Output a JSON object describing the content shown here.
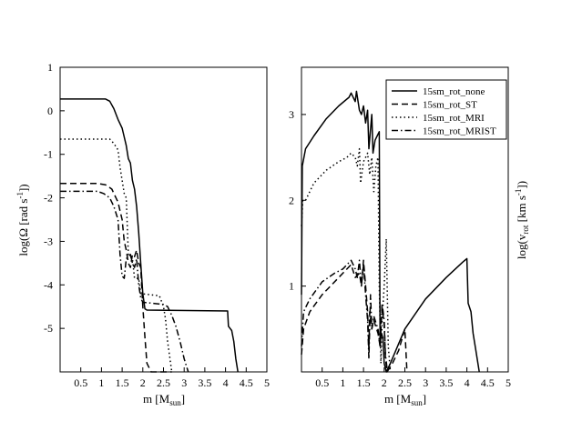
{
  "chart_data": [
    {
      "type": "line",
      "xlabel": "m [M",
      "xlabel_sub": "sun",
      "xlabel_close": "]",
      "ylabel": "log(Ω [rad s",
      "ylabel_sup": "-1",
      "ylabel_close": "])",
      "xlim": [
        0,
        5
      ],
      "ylim": [
        -6,
        1
      ],
      "xticks": [
        "0.5",
        "1",
        "1.5",
        "2",
        "2.5",
        "3",
        "3.5",
        "4",
        "4.5",
        "5"
      ],
      "xtick_values": [
        0.5,
        1,
        1.5,
        2,
        2.5,
        3,
        3.5,
        4,
        4.5,
        5
      ],
      "yticks": [
        "1",
        "0",
        "-1",
        "-2",
        "-3",
        "-4",
        "-5"
      ],
      "ytick_values": [
        1,
        0,
        -1,
        -2,
        -3,
        -4,
        -5
      ],
      "series": [
        {
          "dash": "solid",
          "points": [
            [
              0,
              0.27
            ],
            [
              1.1,
              0.27
            ],
            [
              1.2,
              0.22
            ],
            [
              1.3,
              0.05
            ],
            [
              1.4,
              -0.2
            ],
            [
              1.5,
              -0.4
            ],
            [
              1.6,
              -0.8
            ],
            [
              1.65,
              -1.1
            ],
            [
              1.7,
              -1.2
            ],
            [
              1.75,
              -1.6
            ],
            [
              1.8,
              -1.8
            ],
            [
              1.85,
              -2.2
            ],
            [
              1.9,
              -2.8
            ],
            [
              1.95,
              -3.5
            ],
            [
              2.0,
              -4.2
            ],
            [
              2.05,
              -4.55
            ],
            [
              2.1,
              -4.58
            ],
            [
              4.05,
              -4.6
            ],
            [
              4.07,
              -4.95
            ],
            [
              4.15,
              -5.05
            ],
            [
              4.2,
              -5.3
            ],
            [
              4.25,
              -5.7
            ],
            [
              4.3,
              -6.0
            ]
          ]
        },
        {
          "dash": "dotted",
          "points": [
            [
              0,
              -0.65
            ],
            [
              1.2,
              -0.65
            ],
            [
              1.3,
              -0.75
            ],
            [
              1.4,
              -0.9
            ],
            [
              1.45,
              -1.3
            ],
            [
              1.5,
              -1.6
            ],
            [
              1.55,
              -1.9
            ],
            [
              1.6,
              -2.0
            ],
            [
              1.65,
              -3.3
            ],
            [
              1.75,
              -3.4
            ],
            [
              1.8,
              -3.85
            ],
            [
              1.9,
              -3.85
            ],
            [
              1.95,
              -4.2
            ],
            [
              2.4,
              -4.25
            ],
            [
              2.5,
              -4.5
            ],
            [
              2.55,
              -4.8
            ],
            [
              2.6,
              -5.3
            ],
            [
              2.7,
              -6.0
            ]
          ]
        },
        {
          "dash": "dashed",
          "points": [
            [
              0,
              -1.67
            ],
            [
              0.9,
              -1.67
            ],
            [
              1.1,
              -1.7
            ],
            [
              1.25,
              -1.8
            ],
            [
              1.35,
              -2.0
            ],
            [
              1.4,
              -2.1
            ],
            [
              1.45,
              -2.3
            ],
            [
              1.5,
              -2.5
            ],
            [
              1.55,
              -3.0
            ],
            [
              1.6,
              -3.2
            ],
            [
              1.65,
              -3.5
            ],
            [
              1.7,
              -3.6
            ],
            [
              1.75,
              -3.3
            ],
            [
              1.8,
              -3.35
            ],
            [
              1.85,
              -3.2
            ],
            [
              1.9,
              -3.5
            ],
            [
              1.95,
              -3.6
            ],
            [
              2.0,
              -4.5
            ],
            [
              2.05,
              -5.2
            ],
            [
              2.1,
              -5.8
            ],
            [
              2.2,
              -6.0
            ],
            [
              2.7,
              -6.0
            ]
          ]
        },
        {
          "dash": "dashdot",
          "points": [
            [
              0,
              -1.85
            ],
            [
              0.9,
              -1.85
            ],
            [
              1.05,
              -1.9
            ],
            [
              1.2,
              -2.0
            ],
            [
              1.3,
              -2.2
            ],
            [
              1.4,
              -2.5
            ],
            [
              1.45,
              -3.3
            ],
            [
              1.5,
              -3.8
            ],
            [
              1.55,
              -3.85
            ],
            [
              1.6,
              -3.4
            ],
            [
              1.7,
              -3.3
            ],
            [
              1.75,
              -3.5
            ],
            [
              1.8,
              -3.6
            ],
            [
              1.85,
              -3.4
            ],
            [
              1.9,
              -4.0
            ],
            [
              1.95,
              -4.3
            ],
            [
              2.0,
              -4.4
            ],
            [
              2.5,
              -4.45
            ],
            [
              2.6,
              -4.5
            ],
            [
              2.7,
              -4.7
            ],
            [
              2.8,
              -4.95
            ],
            [
              2.9,
              -5.3
            ],
            [
              3.0,
              -5.7
            ],
            [
              3.1,
              -6.0
            ]
          ]
        }
      ]
    },
    {
      "type": "line",
      "xlabel": "m [M",
      "xlabel_sub": "sun",
      "xlabel_close": "]",
      "ylabel": "log(v",
      "ylabel_sub": "rot",
      "ylabel_close": " [km s",
      "ylabel_sup": "-1",
      "ylabel_end": "])",
      "xlim": [
        0,
        5
      ],
      "ylim": [
        0,
        3.55
      ],
      "xticks": [
        "0.5",
        "1",
        "1.5",
        "2",
        "2.5",
        "3",
        "3.5",
        "4",
        "4.5",
        "5"
      ],
      "xtick_values": [
        0.5,
        1,
        1.5,
        2,
        2.5,
        3,
        3.5,
        4,
        4.5,
        5
      ],
      "yticks": [
        "3",
        "2",
        "1"
      ],
      "ytick_values": [
        3,
        2,
        1
      ],
      "legend_position": "top-right",
      "series": [
        {
          "name": "15sm_rot_none",
          "dash": "solid",
          "points": [
            [
              0,
              0.9
            ],
            [
              0.02,
              2.4
            ],
            [
              0.1,
              2.6
            ],
            [
              0.3,
              2.75
            ],
            [
              0.6,
              2.95
            ],
            [
              0.9,
              3.1
            ],
            [
              1.15,
              3.2
            ],
            [
              1.2,
              3.25
            ],
            [
              1.3,
              3.15
            ],
            [
              1.33,
              3.27
            ],
            [
              1.4,
              3.05
            ],
            [
              1.45,
              3.0
            ],
            [
              1.5,
              3.1
            ],
            [
              1.55,
              2.9
            ],
            [
              1.6,
              3.05
            ],
            [
              1.63,
              2.6
            ],
            [
              1.7,
              3.0
            ],
            [
              1.73,
              2.55
            ],
            [
              1.78,
              2.7
            ],
            [
              1.83,
              2.75
            ],
            [
              1.88,
              2.8
            ],
            [
              1.9,
              0.3
            ],
            [
              1.93,
              0.45
            ],
            [
              1.97,
              0.4
            ],
            [
              2.0,
              0.1
            ],
            [
              2.05,
              0
            ],
            [
              2.15,
              0.1
            ],
            [
              2.5,
              0.5
            ],
            [
              3.0,
              0.85
            ],
            [
              3.5,
              1.1
            ],
            [
              3.9,
              1.28
            ],
            [
              4.0,
              1.32
            ],
            [
              4.03,
              0.8
            ],
            [
              4.1,
              0.7
            ],
            [
              4.15,
              0.45
            ],
            [
              4.2,
              0.3
            ],
            [
              4.3,
              0
            ]
          ]
        },
        {
          "name": "15sm_rot_ST",
          "dash": "dashed",
          "points": [
            [
              0,
              0.2
            ],
            [
              0.05,
              0.5
            ],
            [
              0.2,
              0.7
            ],
            [
              0.5,
              0.9
            ],
            [
              0.9,
              1.1
            ],
            [
              1.2,
              1.25
            ],
            [
              1.3,
              1.1
            ],
            [
              1.4,
              1.15
            ],
            [
              1.45,
              1.0
            ],
            [
              1.5,
              1.3
            ],
            [
              1.55,
              1.0
            ],
            [
              1.6,
              0.7
            ],
            [
              1.63,
              0.25
            ],
            [
              1.65,
              0.7
            ],
            [
              1.7,
              0.5
            ],
            [
              1.75,
              0.6
            ],
            [
              1.85,
              0.45
            ],
            [
              1.9,
              0.3
            ],
            [
              1.95,
              0.75
            ],
            [
              2.0,
              0.55
            ],
            [
              2.03,
              0.15
            ],
            [
              2.07,
              0
            ],
            [
              2.2,
              0.1
            ],
            [
              2.35,
              0.25
            ],
            [
              2.5,
              0.5
            ],
            [
              2.55,
              0
            ]
          ]
        },
        {
          "name": "15sm_rot_MRI",
          "dash": "dotted",
          "points": [
            [
              0,
              1.7
            ],
            [
              0.03,
              2.0
            ],
            [
              0.1,
              2.0
            ],
            [
              0.3,
              2.2
            ],
            [
              0.6,
              2.35
            ],
            [
              0.9,
              2.45
            ],
            [
              1.1,
              2.5
            ],
            [
              1.2,
              2.55
            ],
            [
              1.3,
              2.5
            ],
            [
              1.35,
              2.4
            ],
            [
              1.4,
              2.6
            ],
            [
              1.43,
              2.2
            ],
            [
              1.5,
              2.45
            ],
            [
              1.55,
              2.5
            ],
            [
              1.6,
              2.55
            ],
            [
              1.65,
              2.3
            ],
            [
              1.7,
              2.5
            ],
            [
              1.75,
              2.1
            ],
            [
              1.8,
              2.4
            ],
            [
              1.85,
              2.5
            ],
            [
              1.88,
              1.0
            ],
            [
              1.92,
              0.1
            ],
            [
              1.95,
              0.6
            ],
            [
              2.0,
              1.0
            ],
            [
              2.05,
              1.55
            ],
            [
              2.1,
              0.3
            ],
            [
              2.15,
              0
            ]
          ]
        },
        {
          "name": "15sm_rot_MRIST",
          "dash": "dashdot",
          "points": [
            [
              0,
              0.3
            ],
            [
              0.05,
              0.7
            ],
            [
              0.2,
              0.85
            ],
            [
              0.5,
              1.05
            ],
            [
              0.8,
              1.15
            ],
            [
              1.0,
              1.2
            ],
            [
              1.2,
              1.3
            ],
            [
              1.3,
              1.2
            ],
            [
              1.35,
              1.1
            ],
            [
              1.4,
              1.3
            ],
            [
              1.45,
              1.0
            ],
            [
              1.5,
              1.25
            ],
            [
              1.55,
              0.9
            ],
            [
              1.6,
              0.6
            ],
            [
              1.63,
              0.15
            ],
            [
              1.67,
              0.9
            ],
            [
              1.7,
              0.5
            ],
            [
              1.75,
              0.65
            ],
            [
              1.85,
              0.5
            ],
            [
              1.9,
              0.3
            ],
            [
              1.95,
              0.8
            ],
            [
              2.0,
              0.6
            ],
            [
              2.03,
              0.2
            ],
            [
              2.08,
              0
            ]
          ]
        }
      ]
    }
  ]
}
